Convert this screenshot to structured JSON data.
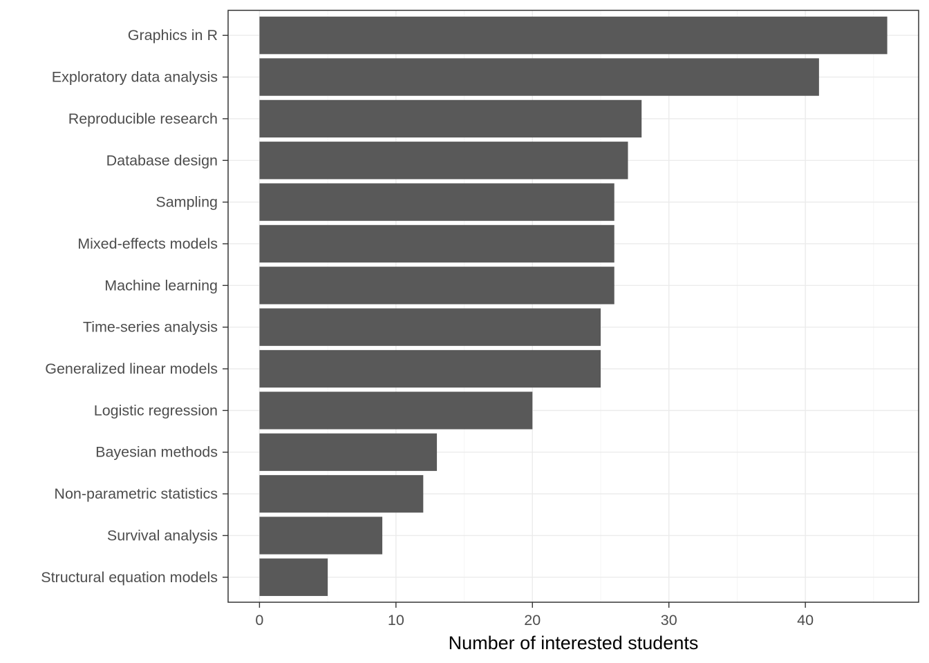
{
  "chart_data": {
    "type": "bar",
    "orientation": "horizontal",
    "categories": [
      "Graphics in R",
      "Exploratory data analysis",
      "Reproducible research",
      "Database design",
      "Sampling",
      "Mixed-effects models",
      "Machine learning",
      "Time-series analysis",
      "Generalized linear models",
      "Logistic regression",
      "Bayesian methods",
      "Non-parametric statistics",
      "Survival analysis",
      "Structural equation models"
    ],
    "values": [
      46,
      41,
      28,
      27,
      26,
      26,
      26,
      25,
      25,
      20,
      13,
      12,
      9,
      5
    ],
    "title": "",
    "xlabel": "Number of interested students",
    "ylabel": "",
    "xlim": [
      -2.3,
      48.3
    ],
    "xticks": [
      0,
      10,
      20,
      30,
      40
    ],
    "grid": true,
    "legend": "none",
    "colors": {
      "bar": "#595959",
      "panel_border": "#333333",
      "grid": "#ebebeb",
      "tick_text": "#4d4d4d",
      "axis_title": "#000000"
    }
  }
}
